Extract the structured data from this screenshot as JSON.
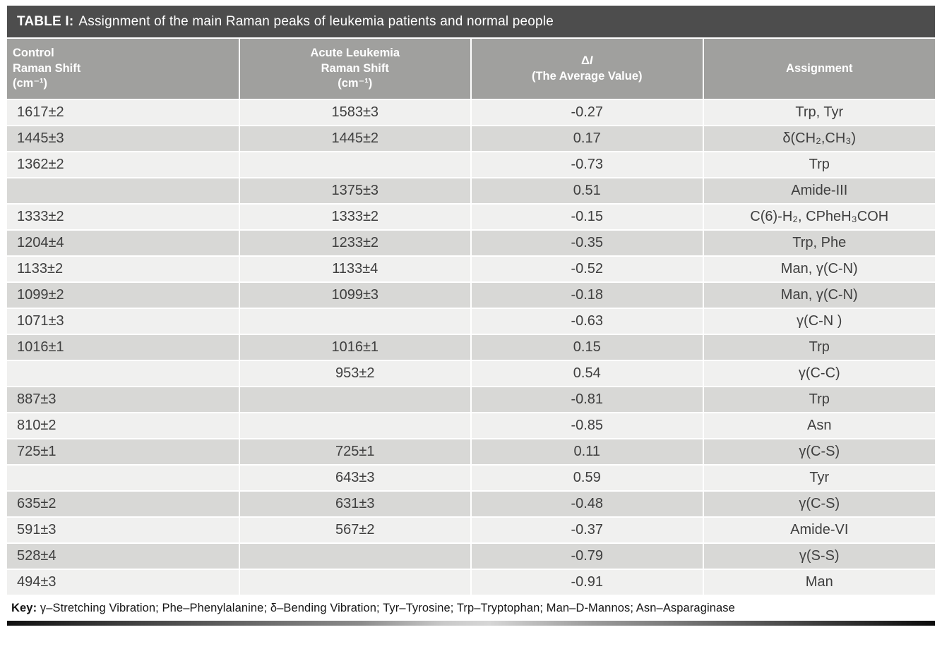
{
  "title": {
    "label": "TABLE I:",
    "text": "Assignment of the main Raman peaks of leukemia patients and normal people"
  },
  "header": {
    "col1": [
      "Control",
      "Raman Shift",
      "(cm⁻¹)"
    ],
    "col2": [
      "Acute Leukemia",
      "Raman Shift",
      "(cm⁻¹)"
    ],
    "col3_delta": "Δ",
    "col3_i": "I",
    "col3_line2": "(The Average Value)",
    "col4": "Assignment"
  },
  "rows": [
    {
      "control": "1617±2",
      "leukemia": "1583±3",
      "delta_i": "-0.27",
      "assignment": "Trp, Tyr"
    },
    {
      "control": "1445±3",
      "leukemia": "1445±2",
      "delta_i": "0.17",
      "assignment": "δ(CH₂,CH₃)"
    },
    {
      "control": "1362±2",
      "leukemia": "",
      "delta_i": "-0.73",
      "assignment": "Trp"
    },
    {
      "control": "",
      "leukemia": "1375±3",
      "delta_i": "0.51",
      "assignment": "Amide-III"
    },
    {
      "control": "1333±2",
      "leukemia": "1333±2",
      "delta_i": "-0.15",
      "assignment": "C(6)-H₂, CPheH₃COH"
    },
    {
      "control": "1204±4",
      "leukemia": "1233±2",
      "delta_i": "-0.35",
      "assignment": "Trp, Phe"
    },
    {
      "control": "1133±2",
      "leukemia": "1133±4",
      "delta_i": "-0.52",
      "assignment": "Man, γ(C-N)"
    },
    {
      "control": "1099±2",
      "leukemia": "1099±3",
      "delta_i": "-0.18",
      "assignment": "Man, γ(C-N)"
    },
    {
      "control": "1071±3",
      "leukemia": "",
      "delta_i": "-0.63",
      "assignment": "γ(C-N )"
    },
    {
      "control": "1016±1",
      "leukemia": "1016±1",
      "delta_i": "0.15",
      "assignment": "Trp"
    },
    {
      "control": "",
      "leukemia": "953±2",
      "delta_i": "0.54",
      "assignment": "γ(C-C)"
    },
    {
      "control": "887±3",
      "leukemia": "",
      "delta_i": "-0.81",
      "assignment": "Trp"
    },
    {
      "control": "810±2",
      "leukemia": "",
      "delta_i": "-0.85",
      "assignment": "Asn"
    },
    {
      "control": "725±1",
      "leukemia": "725±1",
      "delta_i": "0.11",
      "assignment": "γ(C-S)"
    },
    {
      "control": "",
      "leukemia": "643±3",
      "delta_i": "0.59",
      "assignment": "Tyr"
    },
    {
      "control": "635±2",
      "leukemia": "631±3",
      "delta_i": "-0.48",
      "assignment": "γ(C-S)"
    },
    {
      "control": "591±3",
      "leukemia": "567±2",
      "delta_i": "-0.37",
      "assignment": "Amide-VI"
    },
    {
      "control": "528±4",
      "leukemia": "",
      "delta_i": "-0.79",
      "assignment": "γ(S-S)"
    },
    {
      "control": "494±3",
      "leukemia": "",
      "delta_i": "-0.91",
      "assignment": "Man"
    }
  ],
  "footer": {
    "key_label": "Key:",
    "key_text": " γ–Stretching Vibration; Phe–Phenylalanine; δ–Bending Vibration; Tyr–Tyrosine; Trp–Tryptophan; Man–D-Mannos; Asn–Asparaginase"
  },
  "colors": {
    "title_bar_bg": "#4d4d4d",
    "header_bg": "#a0a09e",
    "row_light_bg": "#f0f0ef",
    "row_dark_bg": "#d8d8d6",
    "data_text": "#3f3f3f",
    "header_text": "#ffffff"
  }
}
